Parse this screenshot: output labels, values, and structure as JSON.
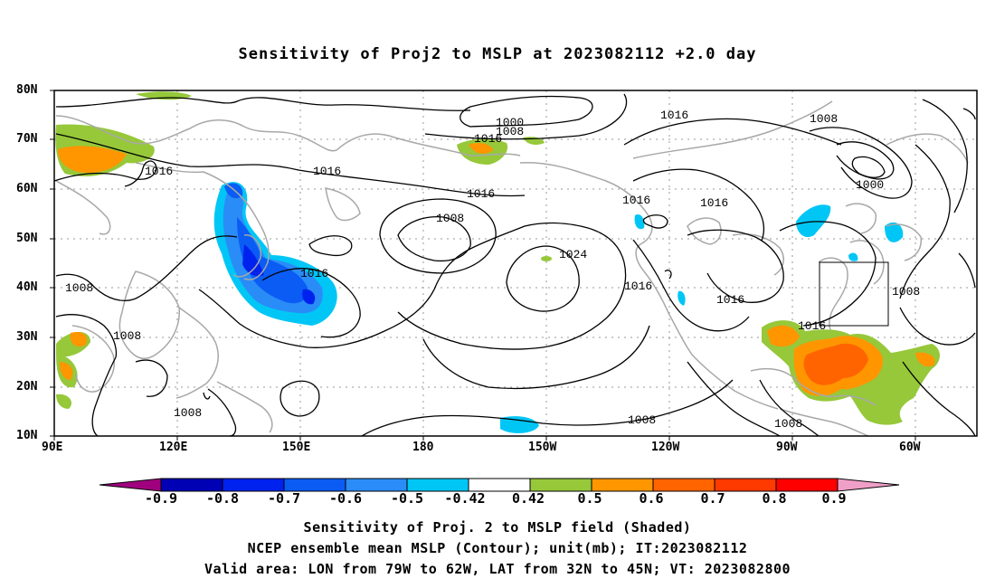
{
  "title": "Sensitivity of Proj2 to MSLP at 2023082112 +2.0 day",
  "lat_labels": [
    "80N",
    "70N",
    "60N",
    "50N",
    "40N",
    "30N",
    "20N",
    "10N"
  ],
  "lon_labels": [
    "90E",
    "120E",
    "150E",
    "180",
    "150W",
    "120W",
    "90W",
    "60W"
  ],
  "contour_labels": [
    "1000",
    "1008",
    "1016",
    "1016",
    "1016",
    "1016",
    "1008",
    "1024",
    "1016",
    "1016",
    "1016",
    "1008",
    "1016",
    "1008",
    "1008",
    "1008",
    "1008",
    "1000",
    "1016",
    "1016",
    "1016",
    "1008",
    "1008"
  ],
  "colorbar": {
    "labels": [
      "-0.9",
      "-0.8",
      "-0.7",
      "-0.6",
      "-0.5",
      "-0.42",
      "0.42",
      "0.5",
      "0.6",
      "0.7",
      "0.8",
      "0.9"
    ],
    "colors": [
      "#a0007e",
      "#0000b4",
      "#0022ee",
      "#0a5cf4",
      "#2a8cf6",
      "#00c6f6",
      "#ffffff",
      "#96c83a",
      "#ff9600",
      "#ff6400",
      "#ff3a00",
      "#ff0000",
      "#f0a0c8"
    ]
  },
  "captions": [
    "Sensitivity of Proj. 2 to MSLP field (Shaded)",
    "NCEP ensemble mean MSLP (Contour); unit(mb); IT:2023082112",
    "Valid area: LON from 79W to 62W, LAT from 32N to 45N; VT: 2023082800"
  ]
}
